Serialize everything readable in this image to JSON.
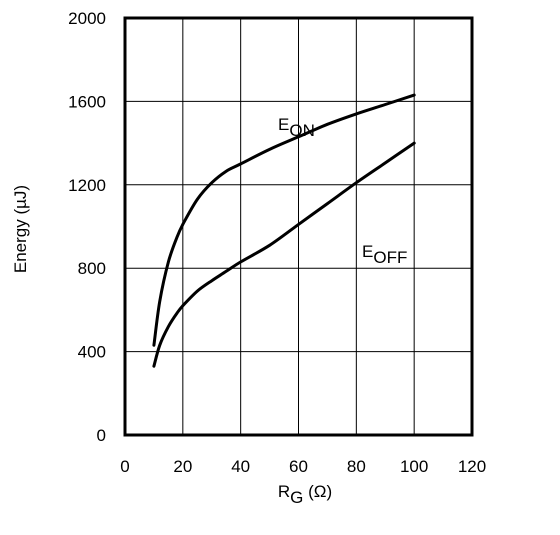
{
  "chart_data": {
    "type": "line",
    "xlabel": {
      "main": "R",
      "sub": "G",
      "unit": " (Ω)"
    },
    "ylabel": "Energy (µJ)",
    "xlim": [
      0,
      120
    ],
    "ylim": [
      0,
      2000
    ],
    "xticks": [
      0,
      20,
      40,
      60,
      80,
      100,
      120
    ],
    "yticks": [
      0,
      400,
      800,
      1200,
      1600,
      2000
    ],
    "grid": true,
    "series": [
      {
        "name": {
          "main": "E",
          "sub": "ON"
        },
        "x": [
          10,
          12,
          15,
          18,
          20,
          25,
          30,
          35,
          40,
          50,
          60,
          70,
          80,
          90,
          100
        ],
        "y": [
          430,
          640,
          830,
          950,
          1010,
          1130,
          1210,
          1265,
          1300,
          1370,
          1430,
          1490,
          1540,
          1585,
          1630
        ]
      },
      {
        "name": {
          "main": "E",
          "sub": "OFF"
        },
        "x": [
          10,
          12,
          15,
          18,
          20,
          25,
          30,
          35,
          40,
          50,
          60,
          70,
          80,
          90,
          100
        ],
        "y": [
          330,
          430,
          520,
          585,
          620,
          690,
          740,
          785,
          830,
          910,
          1010,
          1110,
          1210,
          1305,
          1400
        ]
      }
    ]
  }
}
